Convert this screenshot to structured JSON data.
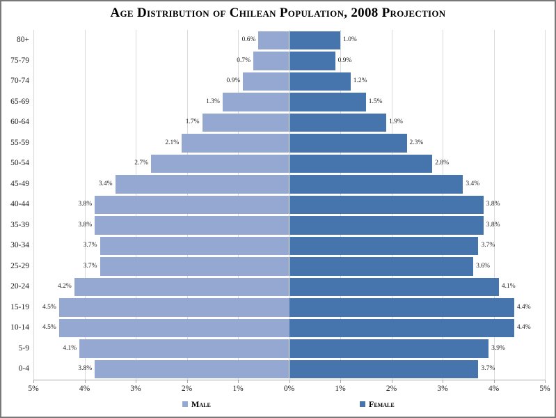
{
  "title": "Age Distribution of Chilean Population, 2008 Projection",
  "colors": {
    "male": "#95A8D1",
    "female": "#4674AC",
    "gridline": "#D9D9D9",
    "axis": "#A6A6A6",
    "frame_border": "#787878",
    "text": "#000000"
  },
  "legend": {
    "position": "bottom",
    "male_label": "Male",
    "female_label": "Female"
  },
  "x_axis": {
    "tick_labels": [
      "5%",
      "4%",
      "3%",
      "2%",
      "1%",
      "0%",
      "1%",
      "2%",
      "3%",
      "4%",
      "5%"
    ],
    "max_percent_each_side": 5
  },
  "chart_data": {
    "type": "bar",
    "subtype": "population-pyramid",
    "title": "Age Distribution of Chilean Population, 2008 Projection",
    "unit": "%",
    "xlim": [
      -5,
      5
    ],
    "grid": "vertical",
    "legend_position": "bottom",
    "categories": [
      "80+",
      "75-79",
      "70-74",
      "65-69",
      "60-64",
      "55-59",
      "50-54",
      "45-49",
      "40-44",
      "35-39",
      "30-34",
      "25-29",
      "20-24",
      "15-19",
      "10-14",
      "5-9",
      "0-4"
    ],
    "series": [
      {
        "name": "Male",
        "side": "left",
        "values": [
          0.6,
          0.7,
          0.9,
          1.3,
          1.7,
          2.1,
          2.7,
          3.4,
          3.8,
          3.8,
          3.7,
          3.7,
          4.2,
          4.5,
          4.5,
          4.1,
          3.8
        ],
        "labels": [
          "0.6%",
          "0.7%",
          "0.9%",
          "1.3%",
          "1.7%",
          "2.1%",
          "2.7%",
          "3.4%",
          "3.8%",
          "3.8%",
          "3.7%",
          "3.7%",
          "4.2%",
          "4.5%",
          "4.5%",
          "4.1%",
          "3.8%"
        ]
      },
      {
        "name": "Female",
        "side": "right",
        "values": [
          1.0,
          0.9,
          1.2,
          1.5,
          1.9,
          2.3,
          2.8,
          3.4,
          3.8,
          3.8,
          3.7,
          3.6,
          4.1,
          4.4,
          4.4,
          3.9,
          3.7
        ],
        "labels": [
          "1.0%",
          "0.9%",
          "1.2%",
          "1.5%",
          "1.9%",
          "2.3%",
          "2.8%",
          "3.4%",
          "3.8%",
          "3.8%",
          "3.7%",
          "3.6%",
          "4.1%",
          "4.4%",
          "4.4%",
          "3.9%",
          "3.7%"
        ]
      }
    ]
  }
}
